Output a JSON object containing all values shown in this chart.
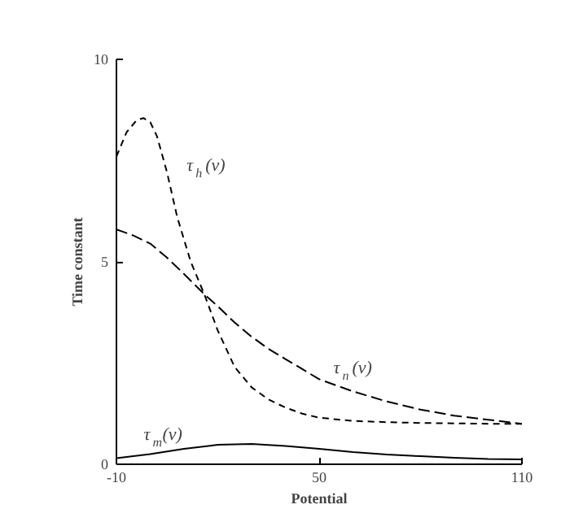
{
  "chart_data": {
    "type": "line",
    "xlabel": "Potential",
    "ylabel": "Time constant",
    "xlim": [
      -10,
      110
    ],
    "ylim": [
      0,
      10
    ],
    "xticks": [
      -10,
      50,
      110
    ],
    "yticks": [
      0,
      5,
      10
    ],
    "grid": false,
    "series": [
      {
        "name": "τ$_{h}$(v)",
        "color": "#000000",
        "line_style": "dashed",
        "x": [
          -10,
          -7,
          -4,
          -2,
          0,
          2,
          5,
          8,
          12,
          16,
          20,
          25,
          30,
          35,
          40,
          45,
          50,
          60,
          70,
          80,
          90,
          100,
          110
        ],
        "values": [
          7.6,
          8.2,
          8.5,
          8.55,
          8.45,
          8.1,
          7.2,
          6.1,
          5.0,
          4.2,
          3.3,
          2.4,
          1.9,
          1.6,
          1.4,
          1.25,
          1.15,
          1.07,
          1.04,
          1.02,
          1.01,
          1.0,
          1.0
        ]
      },
      {
        "name": "τ$_{n}$(v)",
        "color": "#000000",
        "line_style": "dashed",
        "x": [
          -10,
          -5,
          0,
          5,
          10,
          16,
          20,
          25,
          30,
          35,
          40,
          45,
          50,
          60,
          70,
          80,
          90,
          100,
          110
        ],
        "values": [
          5.8,
          5.65,
          5.45,
          5.1,
          4.7,
          4.2,
          3.9,
          3.5,
          3.15,
          2.85,
          2.6,
          2.35,
          2.1,
          1.8,
          1.55,
          1.35,
          1.2,
          1.1,
          1.0
        ]
      },
      {
        "name": "τ$_{m}$(v)",
        "color": "#000000",
        "line_style": "solid",
        "x": [
          -10,
          0,
          10,
          20,
          30,
          40,
          50,
          60,
          70,
          80,
          90,
          100,
          110
        ],
        "values": [
          0.15,
          0.25,
          0.38,
          0.48,
          0.5,
          0.45,
          0.38,
          0.3,
          0.24,
          0.2,
          0.16,
          0.13,
          0.12
        ]
      }
    ]
  }
}
